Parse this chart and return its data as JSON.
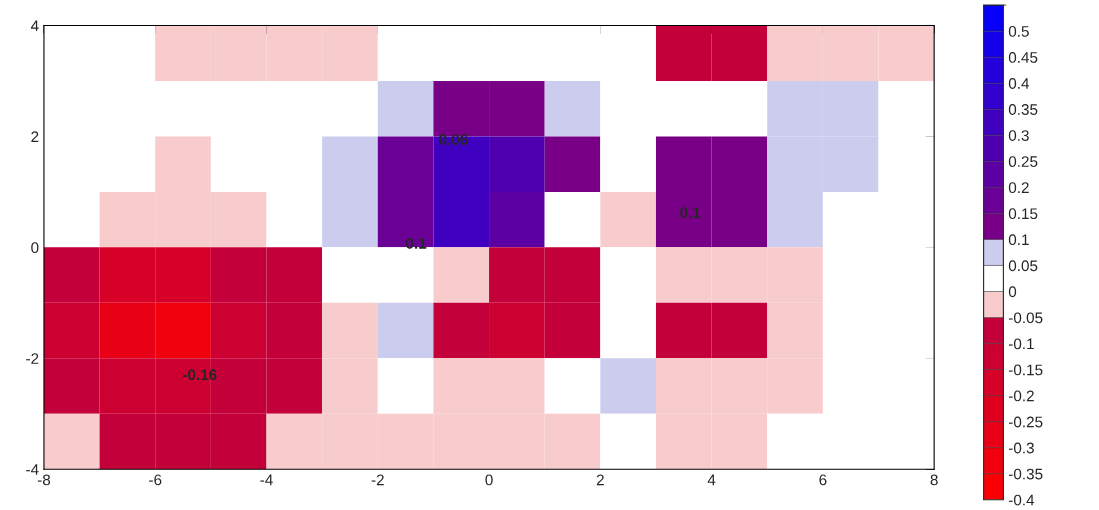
{
  "chart_data": {
    "type": "heatmap",
    "x": [
      -7.5,
      -6.5,
      -5.5,
      -4.5,
      -3.5,
      -2.5,
      -1.5,
      -0.5,
      0.5,
      1.5,
      2.5,
      3.5,
      4.5,
      5.5,
      6.5,
      7.5
    ],
    "y": [
      3.5,
      2.5,
      1.5,
      0.5,
      -0.5,
      -1.5,
      -2.5,
      -3.5
    ],
    "xlim": [
      -8,
      8
    ],
    "ylim": [
      -4,
      4
    ],
    "xticks": [
      -8,
      -6,
      -4,
      -2,
      0,
      2,
      4,
      6,
      8
    ],
    "yticks": [
      -4,
      -2,
      0,
      2,
      4
    ],
    "clim": [
      -0.4,
      0.55
    ],
    "cticks": [
      -0.4,
      -0.35,
      -0.3,
      -0.25,
      -0.2,
      -0.15,
      -0.1,
      -0.05,
      0,
      0.05,
      0.1,
      0.15,
      0.2,
      0.25,
      0.3,
      0.35,
      0.4,
      0.45,
      0.5
    ],
    "cells": [
      [
        0.025,
        0.025,
        -0.025,
        -0.025,
        -0.025,
        -0.025,
        0.025,
        0.025,
        0.025,
        0.025,
        0.025,
        -0.075,
        -0.075,
        -0.025,
        -0.025,
        -0.025
      ],
      [
        0.025,
        0.025,
        0.025,
        0.025,
        0.025,
        0.025,
        0.075,
        0.125,
        0.125,
        0.075,
        0.025,
        0.025,
        0.025,
        0.075,
        0.075,
        0.025
      ],
      [
        0.025,
        0.025,
        -0.025,
        0.025,
        0.025,
        0.075,
        0.175,
        0.325,
        0.275,
        0.125,
        0.025,
        0.125,
        0.125,
        0.075,
        0.075,
        0.025
      ],
      [
        0.025,
        -0.025,
        -0.025,
        -0.025,
        0.025,
        0.075,
        0.175,
        0.325,
        0.225,
        0.025,
        -0.025,
        0.125,
        0.125,
        0.075,
        0.025,
        0.025
      ],
      [
        -0.075,
        -0.175,
        -0.175,
        -0.075,
        -0.075,
        0.025,
        0.025,
        -0.025,
        -0.075,
        -0.075,
        0.025,
        -0.025,
        -0.025,
        -0.025,
        0.025,
        0.025
      ],
      [
        -0.125,
        -0.275,
        -0.325,
        -0.125,
        -0.075,
        -0.025,
        0.075,
        -0.075,
        -0.125,
        -0.075,
        0.025,
        -0.075,
        -0.075,
        -0.025,
        0.025,
        0.025
      ],
      [
        -0.075,
        -0.125,
        -0.125,
        -0.075,
        -0.075,
        -0.025,
        0.025,
        -0.025,
        -0.025,
        0.025,
        0.075,
        -0.025,
        -0.025,
        -0.025,
        0.025,
        0.025
      ],
      [
        -0.025,
        -0.075,
        -0.075,
        -0.075,
        -0.025,
        -0.025,
        -0.025,
        -0.025,
        -0.025,
        -0.025,
        0.025,
        -0.025,
        -0.025,
        0.025,
        0.025,
        0.025
      ]
    ],
    "annotations": [
      "0.06",
      "0.1",
      "-0.16",
      "0.1"
    ]
  }
}
